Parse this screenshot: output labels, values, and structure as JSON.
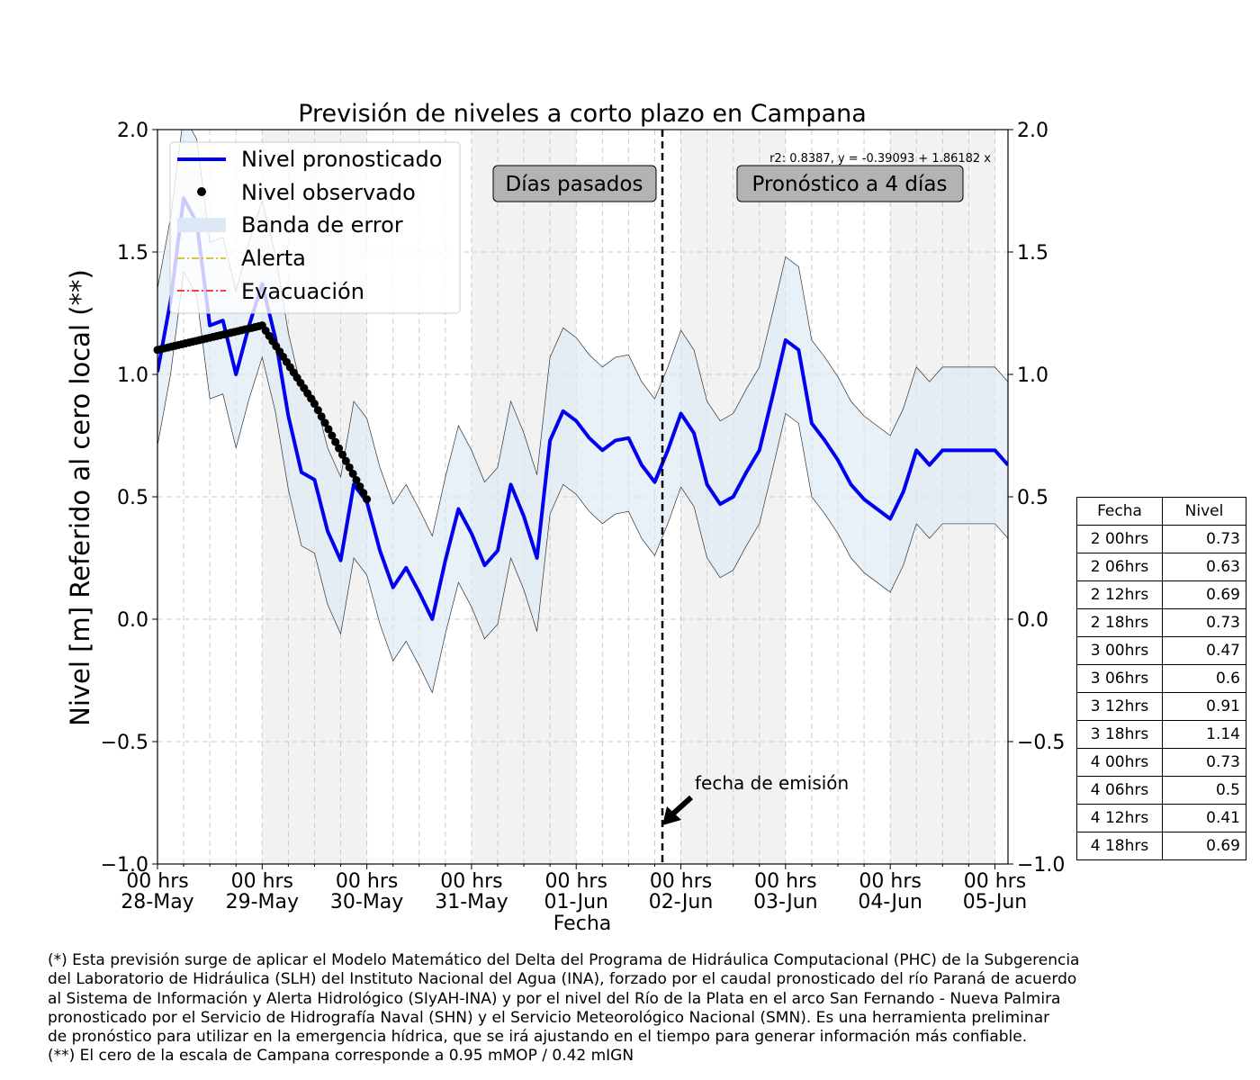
{
  "chart_data": {
    "type": "line",
    "title": "Previsión de niveles a corto plazo en Campana",
    "xlabel": "Fecha",
    "ylabel": "Nivel [m] Referido al cero local (**)",
    "x_range": [
      "2023-05-28 00:00",
      "2023-06-05 03:00"
    ],
    "ylim": [
      -1.0,
      2.0
    ],
    "y_ticks": [
      "2.0",
      "1.5",
      "1.0",
      "0.5",
      "0.0",
      "−0.5",
      "−1.0"
    ],
    "x_ticks": [
      {
        "top": "00 hrs",
        "bottom": "28-May"
      },
      {
        "top": "00 hrs",
        "bottom": "29-May"
      },
      {
        "top": "00 hrs",
        "bottom": "30-May"
      },
      {
        "top": "00 hrs",
        "bottom": "31-May"
      },
      {
        "top": "00 hrs",
        "bottom": "01-Jun"
      },
      {
        "top": "00 hrs",
        "bottom": "02-Jun"
      },
      {
        "top": "00 hrs",
        "bottom": "03-Jun"
      },
      {
        "top": "00 hrs",
        "bottom": "04-Jun"
      },
      {
        "top": "00 hrs",
        "bottom": "05-Jun"
      }
    ],
    "grid": true,
    "legend_position": "top-left",
    "colors": {
      "forecast": "#0000ee",
      "observed": "#000000",
      "band": "#dce8f5",
      "alert": "#c8b400",
      "evacuation": "#ff0000",
      "shade": "#f2f2f2"
    },
    "legend": [
      {
        "key": "forecast",
        "label": "Nivel pronosticado"
      },
      {
        "key": "observed",
        "label": "Nivel observado"
      },
      {
        "key": "band",
        "label": "Banda de error"
      },
      {
        "key": "alert",
        "label": "Alerta"
      },
      {
        "key": "evacuation",
        "label": "Evacuación"
      }
    ],
    "labels": {
      "past": "Días pasados",
      "forecast": "Pronóstico a 4 días",
      "emission": "fecha de emisión",
      "regression": "r2: 0.8387, y = -0.39093 + 1.86182 x"
    },
    "emission_time": "2023-06-01 22:00",
    "series": [
      {
        "name": "Nivel pronosticado",
        "x": [
          "2023-05-28 00:00",
          "2023-05-28 03:00",
          "2023-05-28 06:00",
          "2023-05-28 09:00",
          "2023-05-28 12:00",
          "2023-05-28 15:00",
          "2023-05-28 18:00",
          "2023-05-28 21:00",
          "2023-05-29 00:00",
          "2023-05-29 03:00",
          "2023-05-29 06:00",
          "2023-05-29 09:00",
          "2023-05-29 12:00",
          "2023-05-29 15:00",
          "2023-05-29 18:00",
          "2023-05-29 21:00",
          "2023-05-30 00:00",
          "2023-05-30 03:00",
          "2023-05-30 06:00",
          "2023-05-30 09:00",
          "2023-05-30 12:00",
          "2023-05-30 15:00",
          "2023-05-30 18:00",
          "2023-05-30 21:00",
          "2023-05-31 00:00",
          "2023-05-31 03:00",
          "2023-05-31 06:00",
          "2023-05-31 09:00",
          "2023-05-31 12:00",
          "2023-05-31 15:00",
          "2023-05-31 18:00",
          "2023-05-31 21:00",
          "2023-06-01 00:00",
          "2023-06-01 03:00",
          "2023-06-01 06:00",
          "2023-06-01 09:00",
          "2023-06-01 12:00",
          "2023-06-01 15:00",
          "2023-06-01 18:00",
          "2023-06-01 21:00",
          "2023-06-02 00:00",
          "2023-06-02 03:00",
          "2023-06-02 06:00",
          "2023-06-02 09:00",
          "2023-06-02 12:00",
          "2023-06-02 15:00",
          "2023-06-02 18:00",
          "2023-06-02 21:00",
          "2023-06-03 00:00",
          "2023-06-03 03:00",
          "2023-06-03 06:00",
          "2023-06-03 09:00",
          "2023-06-03 12:00",
          "2023-06-03 15:00",
          "2023-06-03 18:00",
          "2023-06-03 21:00",
          "2023-06-04 00:00",
          "2023-06-04 03:00",
          "2023-06-04 06:00",
          "2023-06-04 09:00",
          "2023-06-04 12:00",
          "2023-06-04 15:00",
          "2023-06-04 18:00",
          "2023-06-04 21:00",
          "2023-06-05 00:00",
          "2023-06-05 03:00"
        ],
        "y": [
          1.01,
          1.3,
          1.72,
          1.62,
          1.2,
          1.22,
          1.0,
          1.2,
          1.37,
          1.15,
          0.83,
          0.6,
          0.57,
          0.36,
          0.24,
          0.55,
          0.48,
          0.28,
          0.13,
          0.21,
          0.11,
          0.0,
          0.24,
          0.45,
          0.35,
          0.22,
          0.28,
          0.55,
          0.42,
          0.25,
          0.73,
          0.85,
          0.81,
          0.74,
          0.69,
          0.73,
          0.74,
          0.63,
          0.56,
          0.69,
          0.84,
          0.76,
          0.55,
          0.47,
          0.5,
          0.6,
          0.69,
          0.91,
          1.14,
          1.1,
          0.8,
          0.73,
          0.65,
          0.55,
          0.49,
          0.45,
          0.41,
          0.52,
          0.69,
          0.63,
          0.69,
          0.69,
          0.69,
          0.69,
          0.69,
          0.63
        ]
      },
      {
        "name": "Nivel observado",
        "x": [
          "2023-05-28 00:00",
          "2023-05-28 12:00",
          "2023-05-29 00:00",
          "2023-05-29 12:00",
          "2023-05-30 00:00"
        ],
        "y": [
          1.1,
          1.15,
          1.2,
          0.88,
          0.49
        ]
      }
    ]
  },
  "table": {
    "headers": [
      "Fecha",
      "Nivel"
    ],
    "rows": [
      [
        "2 00hrs",
        "0.73"
      ],
      [
        "2 06hrs",
        "0.63"
      ],
      [
        "2 12hrs",
        "0.69"
      ],
      [
        "2 18hrs",
        "0.73"
      ],
      [
        "3 00hrs",
        "0.47"
      ],
      [
        "3 06hrs",
        "0.6"
      ],
      [
        "3 12hrs",
        "0.91"
      ],
      [
        "3 18hrs",
        "1.14"
      ],
      [
        "4 00hrs",
        "0.73"
      ],
      [
        "4 06hrs",
        "0.5"
      ],
      [
        "4 12hrs",
        "0.41"
      ],
      [
        "4 18hrs",
        "0.69"
      ]
    ]
  },
  "footnote": "(*) Esta previsión surge de aplicar el Modelo Matemático del Delta del Programa de Hidráulica Computacional (PHC) de la Subgerencia\ndel Laboratorio de Hidráulica (SLH) del Instituto Nacional del Agua (INA), forzado por el caudal pronosticado del río Paraná de acuerdo\nal Sistema de Información y Alerta Hidrológico (SIyAH-INA) y por el nivel del Río de la Plata en el arco San Fernando - Nueva Palmira\npronosticado por el Servicio de Hidrografía Naval (SHN) y el Servicio Meteorológico Nacional (SMN). Es una herramienta preliminar\nde pronóstico para utilizar en la emergencia hídrica, que se irá ajustando en el tiempo para generar información más confiable.\n(**) El cero de la escala de Campana corresponde a 0.95 mMOP / 0.42 mIGN"
}
